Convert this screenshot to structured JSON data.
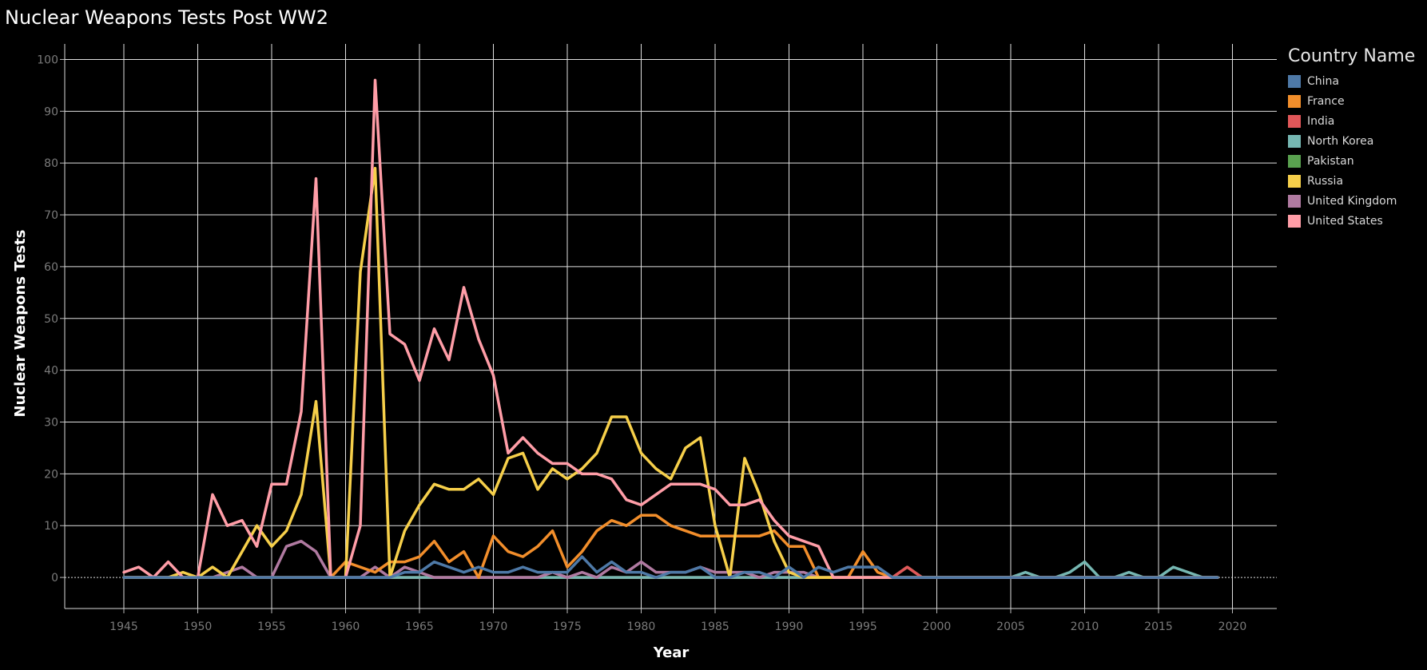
{
  "chart_data": {
    "type": "line",
    "title": "Nuclear Weapons Tests Post WW2",
    "xlabel": "Year",
    "ylabel": "Nuclear Weapons Tests",
    "xlim": [
      1941,
      2023
    ],
    "ylim": [
      -6,
      103
    ],
    "xticks": [
      1945,
      1950,
      1955,
      1960,
      1965,
      1970,
      1975,
      1980,
      1985,
      1990,
      1995,
      2000,
      2005,
      2010,
      2015,
      2020
    ],
    "yticks": [
      0,
      10,
      20,
      30,
      40,
      50,
      60,
      70,
      80,
      90,
      100
    ],
    "grid": true,
    "legend": {
      "title": "Country Name",
      "position": "right"
    },
    "x": [
      1945,
      1946,
      1947,
      1948,
      1949,
      1950,
      1951,
      1952,
      1953,
      1954,
      1955,
      1956,
      1957,
      1958,
      1959,
      1960,
      1961,
      1962,
      1963,
      1964,
      1965,
      1966,
      1967,
      1968,
      1969,
      1970,
      1971,
      1972,
      1973,
      1974,
      1975,
      1976,
      1977,
      1978,
      1979,
      1980,
      1981,
      1982,
      1983,
      1984,
      1985,
      1986,
      1987,
      1988,
      1989,
      1990,
      1991,
      1992,
      1993,
      1994,
      1995,
      1996,
      1997,
      1998,
      1999,
      2000,
      2001,
      2002,
      2003,
      2004,
      2005,
      2006,
      2007,
      2008,
      2009,
      2010,
      2011,
      2012,
      2013,
      2014,
      2015,
      2016,
      2017,
      2018,
      2019
    ],
    "series": [
      {
        "name": "United States",
        "color": "#ff9da7",
        "values": [
          1,
          2,
          0,
          3,
          0,
          0,
          16,
          10,
          11,
          6,
          18,
          18,
          32,
          77,
          0,
          0,
          10,
          96,
          47,
          45,
          38,
          48,
          42,
          56,
          46,
          39,
          24,
          27,
          24,
          22,
          22,
          20,
          20,
          19,
          15,
          14,
          16,
          18,
          18,
          18,
          17,
          14,
          14,
          15,
          11,
          8,
          7,
          6,
          0,
          0,
          0,
          0,
          0,
          0,
          0,
          0,
          0,
          0,
          0,
          0,
          0,
          0,
          0,
          0,
          0,
          0,
          0,
          0,
          0,
          0,
          0,
          0,
          0,
          0,
          0
        ]
      },
      {
        "name": "Russia",
        "color": "#f6cf4a",
        "values": [
          0,
          0,
          0,
          0,
          1,
          0,
          2,
          0,
          5,
          10,
          6,
          9,
          16,
          34,
          0,
          0,
          59,
          79,
          0,
          9,
          14,
          18,
          17,
          17,
          19,
          16,
          23,
          24,
          17,
          21,
          19,
          21,
          24,
          31,
          31,
          24,
          21,
          19,
          25,
          27,
          10,
          0,
          23,
          16,
          7,
          1,
          0,
          0,
          0,
          0,
          0,
          0,
          0,
          0,
          0,
          0,
          0,
          0,
          0,
          0,
          0,
          0,
          0,
          0,
          0,
          0,
          0,
          0,
          0,
          0,
          0,
          0,
          0,
          0,
          0
        ]
      },
      {
        "name": "France",
        "color": "#f28e2b",
        "values": [
          0,
          0,
          0,
          0,
          0,
          0,
          0,
          0,
          0,
          0,
          0,
          0,
          0,
          0,
          0,
          3,
          2,
          1,
          3,
          3,
          4,
          7,
          3,
          5,
          0,
          8,
          5,
          4,
          6,
          9,
          2,
          5,
          9,
          11,
          10,
          12,
          12,
          10,
          9,
          8,
          8,
          8,
          8,
          8,
          9,
          6,
          6,
          0,
          0,
          0,
          5,
          1,
          0,
          0,
          0,
          0,
          0,
          0,
          0,
          0,
          0,
          0,
          0,
          0,
          0,
          0,
          0,
          0,
          0,
          0,
          0,
          0,
          0,
          0,
          0
        ]
      },
      {
        "name": "United Kingdom",
        "color": "#b07aa1",
        "values": [
          0,
          0,
          0,
          0,
          0,
          0,
          0,
          1,
          2,
          0,
          0,
          6,
          7,
          5,
          0,
          0,
          0,
          2,
          0,
          2,
          1,
          0,
          0,
          0,
          0,
          0,
          0,
          0,
          0,
          1,
          0,
          1,
          0,
          2,
          1,
          3,
          1,
          1,
          1,
          2,
          1,
          1,
          1,
          0,
          1,
          1,
          1,
          0,
          0,
          0,
          0,
          0,
          0,
          0,
          0,
          0,
          0,
          0,
          0,
          0,
          0,
          0,
          0,
          0,
          0,
          0,
          0,
          0,
          0,
          0,
          0,
          0,
          0,
          0,
          0
        ]
      },
      {
        "name": "China",
        "color": "#4e79a7",
        "values": [
          0,
          0,
          0,
          0,
          0,
          0,
          0,
          0,
          0,
          0,
          0,
          0,
          0,
          0,
          0,
          0,
          0,
          0,
          0,
          1,
          1,
          3,
          2,
          1,
          2,
          1,
          1,
          2,
          1,
          1,
          1,
          4,
          1,
          3,
          1,
          1,
          0,
          1,
          1,
          2,
          0,
          0,
          1,
          1,
          0,
          2,
          0,
          2,
          1,
          2,
          2,
          2,
          0,
          0,
          0,
          0,
          0,
          0,
          0,
          0,
          0,
          0,
          0,
          0,
          0,
          0,
          0,
          0,
          0,
          0,
          0,
          0,
          0,
          0,
          0
        ]
      },
      {
        "name": "India",
        "color": "#e15759",
        "values": [
          0,
          0,
          0,
          0,
          0,
          0,
          0,
          0,
          0,
          0,
          0,
          0,
          0,
          0,
          0,
          0,
          0,
          0,
          0,
          0,
          0,
          0,
          0,
          0,
          0,
          0,
          0,
          0,
          0,
          1,
          0,
          0,
          0,
          0,
          0,
          0,
          0,
          0,
          0,
          0,
          0,
          0,
          0,
          0,
          0,
          0,
          0,
          0,
          0,
          0,
          0,
          0,
          0,
          2,
          0,
          0,
          0,
          0,
          0,
          0,
          0,
          0,
          0,
          0,
          0,
          0,
          0,
          0,
          0,
          0,
          0,
          0,
          0,
          0,
          0
        ]
      },
      {
        "name": "Pakistan",
        "color": "#59a14f",
        "values": [
          0,
          0,
          0,
          0,
          0,
          0,
          0,
          0,
          0,
          0,
          0,
          0,
          0,
          0,
          0,
          0,
          0,
          0,
          0,
          0,
          0,
          0,
          0,
          0,
          0,
          0,
          0,
          0,
          0,
          0,
          0,
          0,
          0,
          0,
          0,
          0,
          0,
          0,
          0,
          0,
          0,
          0,
          0,
          0,
          0,
          0,
          0,
          0,
          0,
          0,
          0,
          0,
          0,
          2,
          0,
          0,
          0,
          0,
          0,
          0,
          0,
          0,
          0,
          0,
          0,
          0,
          0,
          0,
          0,
          0,
          0,
          0,
          0,
          0,
          0
        ]
      },
      {
        "name": "North Korea",
        "color": "#76b7b2",
        "values": [
          0,
          0,
          0,
          0,
          0,
          0,
          0,
          0,
          0,
          0,
          0,
          0,
          0,
          0,
          0,
          0,
          0,
          0,
          0,
          0,
          0,
          0,
          0,
          0,
          0,
          0,
          0,
          0,
          0,
          0,
          0,
          0,
          0,
          0,
          0,
          0,
          0,
          0,
          0,
          0,
          0,
          0,
          0,
          0,
          0,
          0,
          0,
          0,
          0,
          0,
          0,
          0,
          0,
          0,
          0,
          0,
          0,
          0,
          0,
          0,
          0,
          1,
          0,
          0,
          1,
          3,
          0,
          0,
          1,
          0,
          0,
          2,
          1,
          0,
          0
        ]
      }
    ]
  },
  "legend_items": [
    {
      "name": "China",
      "color": "#4e79a7"
    },
    {
      "name": "France",
      "color": "#f28e2b"
    },
    {
      "name": "India",
      "color": "#e15759"
    },
    {
      "name": "North Korea",
      "color": "#76b7b2"
    },
    {
      "name": "Pakistan",
      "color": "#59a14f"
    },
    {
      "name": "Russia",
      "color": "#f6cf4a"
    },
    {
      "name": "United Kingdom",
      "color": "#b07aa1"
    },
    {
      "name": "United States",
      "color": "#ff9da7"
    }
  ]
}
